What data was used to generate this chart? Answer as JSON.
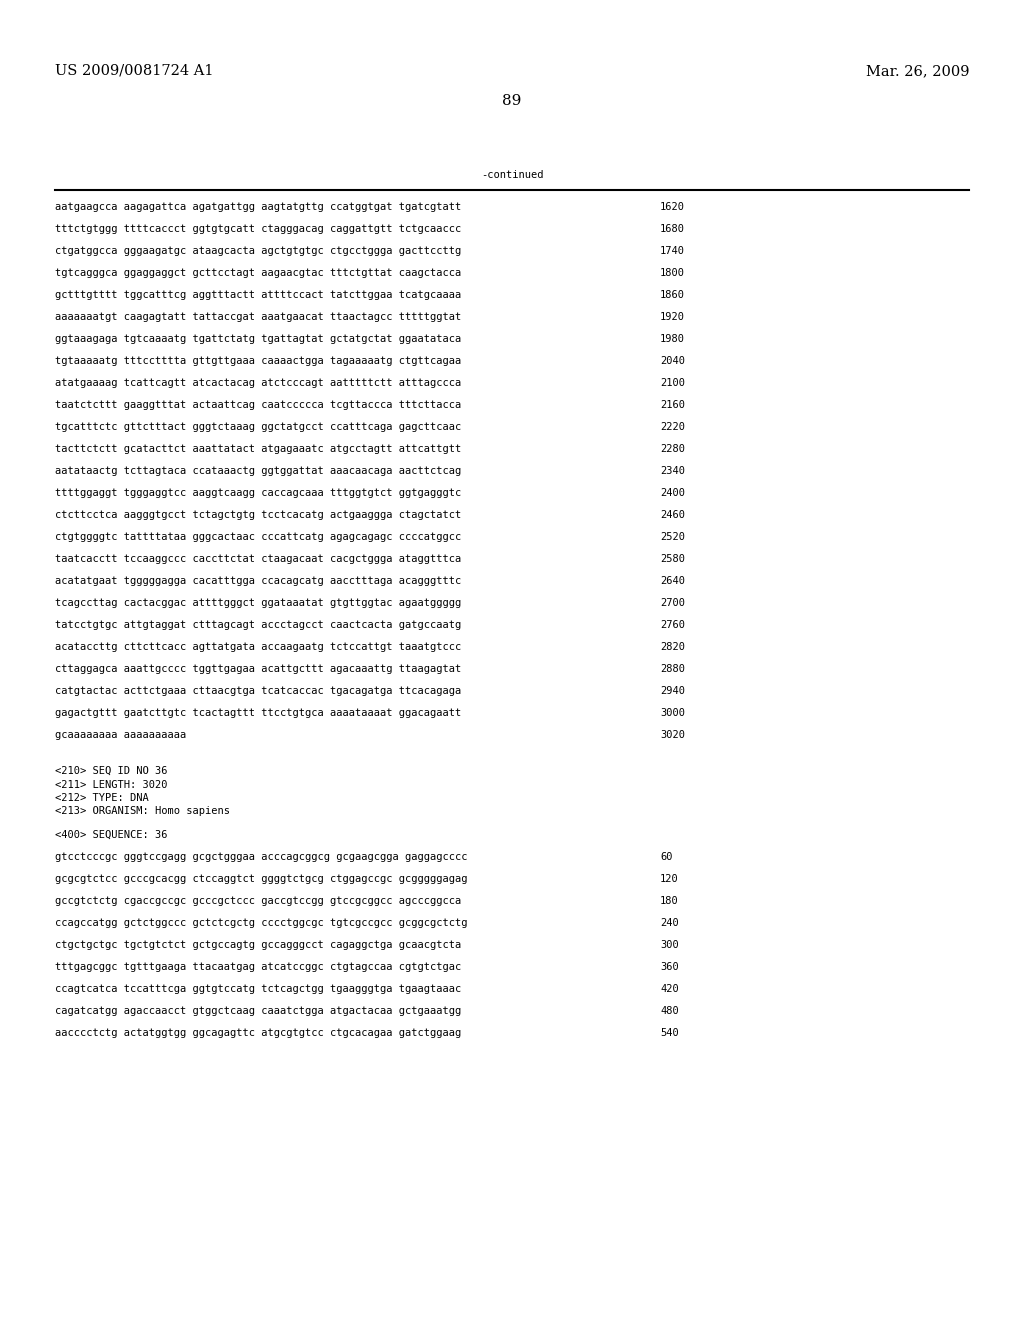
{
  "header_left": "US 2009/0081724 A1",
  "header_right": "Mar. 26, 2009",
  "page_number": "89",
  "continued_label": "-continued",
  "sequence_lines": [
    [
      "aatgaagcca aagagattca agatgattgg aagtatgttg ccatggtgat tgatcgtatt",
      "1620"
    ],
    [
      "tttctgtggg ttttcaccct ggtgtgcatt ctagggacag caggattgtt tctgcaaccc",
      "1680"
    ],
    [
      "ctgatggcca gggaagatgc ataagcacta agctgtgtgc ctgcctggga gacttccttg",
      "1740"
    ],
    [
      "tgtcagggca ggaggaggct gcttcctagt aagaacgtac tttctgttat caagctacca",
      "1800"
    ],
    [
      "gctttgtttt tggcatttcg aggtttactt attttccact tatcttggaa tcatgcaaaa",
      "1860"
    ],
    [
      "aaaaaaatgt caagagtatt tattaccgat aaatgaacat ttaactagcc tttttggtat",
      "1920"
    ],
    [
      "ggtaaagaga tgtcaaaatg tgattctatg tgattagtat gctatgctat ggaatataca",
      "1980"
    ],
    [
      "tgtaaaaatg tttcctttta gttgttgaaa caaaactgga tagaaaaatg ctgttcagaa",
      "2040"
    ],
    [
      "atatgaaaag tcattcagtt atcactacag atctcccagt aatttttctt atttagccca",
      "2100"
    ],
    [
      "taatctcttt gaaggtttat actaattcag caatccccca tcgttaccca tttcttacca",
      "2160"
    ],
    [
      "tgcatttctc gttctttact gggtctaaag ggctatgcct ccatttcaga gagcttcaac",
      "2220"
    ],
    [
      "tacttctctt gcatacttct aaattatact atgagaaatc atgcctagtt attcattgtt",
      "2280"
    ],
    [
      "aatataactg tcttagtaca ccataaactg ggtggattat aaacaacaga aacttctcag",
      "2340"
    ],
    [
      "ttttggaggt tgggaggtcc aaggtcaagg caccagcaaa tttggtgtct ggtgagggtc",
      "2400"
    ],
    [
      "ctcttcctca aagggtgcct tctagctgtg tcctcacatg actgaaggga ctagctatct",
      "2460"
    ],
    [
      "ctgtggggtc tattttataa gggcactaac cccattcatg agagcagagc ccccatggcc",
      "2520"
    ],
    [
      "taatcacctt tccaaggccc caccttctat ctaagacaat cacgctggga ataggtttca",
      "2580"
    ],
    [
      "acatatgaat tgggggagga cacatttgga ccacagcatg aacctttaga acagggtttc",
      "2640"
    ],
    [
      "tcagccttag cactacggac attttgggct ggataaatat gtgttggtac agaatggggg",
      "2700"
    ],
    [
      "tatcctgtgc attgtaggat ctttagcagt accctagcct caactcacta gatgccaatg",
      "2760"
    ],
    [
      "acataccttg cttcttcacc agttatgata accaagaatg tctccattgt taaatgtccc",
      "2820"
    ],
    [
      "cttaggagca aaattgcccc tggttgagaa acattgcttt agacaaattg ttaagagtat",
      "2880"
    ],
    [
      "catgtactac acttctgaaa cttaacgtga tcatcaccac tgacagatga ttcacagaga",
      "2940"
    ],
    [
      "gagactgttt gaatcttgtc tcactagttt ttcctgtgca aaaataaaat ggacagaatt",
      "3000"
    ],
    [
      "gcaaaaaaaa aaaaaaaaaa",
      "3020"
    ]
  ],
  "metadata_lines": [
    "<210> SEQ ID NO 36",
    "<211> LENGTH: 3020",
    "<212> TYPE: DNA",
    "<213> ORGANISM: Homo sapiens"
  ],
  "sequence_header": "<400> SEQUENCE: 36",
  "sequence_lines2": [
    [
      "gtcctcccgc gggtccgagg gcgctgggaa acccagcggcg gcgaagcgga gaggagcccc",
      "60"
    ],
    [
      "gcgcgtctcc gcccgcacgg ctccaggtct ggggtctgcg ctggagccgc gcgggggagag",
      "120"
    ],
    [
      "gccgtctctg cgaccgccgc gcccgctccc gaccgtccgg gtccgcggcc agcccggcca",
      "180"
    ],
    [
      "ccagccatgg gctctggccc gctctcgctg cccctggcgc tgtcgccgcc gcggcgctctg",
      "240"
    ],
    [
      "ctgctgctgc tgctgtctct gctgccagtg gccagggcct cagaggctga gcaacgtcta",
      "300"
    ],
    [
      "tttgagcggc tgtttgaaga ttacaatgag atcatccggc ctgtagccaa cgtgtctgac",
      "360"
    ],
    [
      "ccagtcatca tccatttcga ggtgtccatg tctcagctgg tgaagggtga tgaagtaaac",
      "420"
    ],
    [
      "cagatcatgg agaccaacct gtggctcaag caaatctgga atgactacaa gctgaaatgg",
      "480"
    ],
    [
      "aacccctctg actatggtgg ggcagagttc atgcgtgtcc ctgcacagaa gatctggaag",
      "540"
    ]
  ],
  "background_color": "#ffffff",
  "text_color": "#000000",
  "font_size_header": 10.5,
  "font_size_body": 8.0,
  "font_size_page": 11,
  "font_size_mono": 7.5
}
